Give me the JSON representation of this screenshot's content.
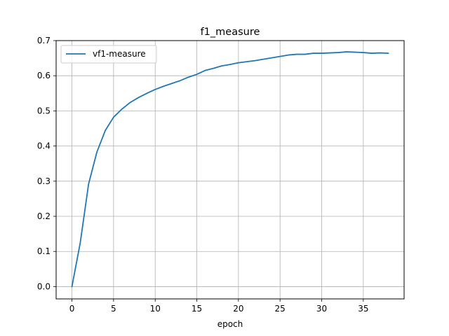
{
  "chart_data": {
    "type": "line",
    "title": "f1_measure",
    "xlabel": "epoch",
    "ylabel": "",
    "xlim": [
      -1.9,
      39.9
    ],
    "ylim": [
      -0.035,
      0.7
    ],
    "xticks": [
      0,
      5,
      10,
      15,
      20,
      25,
      30,
      35
    ],
    "yticks": [
      0.0,
      0.1,
      0.2,
      0.3,
      0.4,
      0.5,
      0.6,
      0.7
    ],
    "ytick_labels": [
      "0.0",
      "0.1",
      "0.2",
      "0.3",
      "0.4",
      "0.5",
      "0.6",
      "0.7"
    ],
    "grid": true,
    "legend": {
      "position": "upper-left"
    },
    "series": [
      {
        "name": "vf1-measure",
        "color": "#1f77b4",
        "x": [
          0,
          1,
          2,
          3,
          4,
          5,
          6,
          7,
          8,
          9,
          10,
          11,
          12,
          13,
          14,
          15,
          16,
          17,
          18,
          19,
          20,
          21,
          22,
          23,
          24,
          25,
          26,
          27,
          28,
          29,
          30,
          31,
          32,
          33,
          34,
          35,
          36,
          37,
          38
        ],
        "y": [
          0.0,
          0.125,
          0.292,
          0.383,
          0.444,
          0.482,
          0.505,
          0.524,
          0.538,
          0.55,
          0.561,
          0.57,
          0.578,
          0.586,
          0.596,
          0.604,
          0.615,
          0.621,
          0.628,
          0.632,
          0.637,
          0.64,
          0.643,
          0.647,
          0.651,
          0.655,
          0.659,
          0.661,
          0.661,
          0.664,
          0.664,
          0.665,
          0.666,
          0.668,
          0.667,
          0.666,
          0.664,
          0.665,
          0.664
        ]
      }
    ]
  }
}
